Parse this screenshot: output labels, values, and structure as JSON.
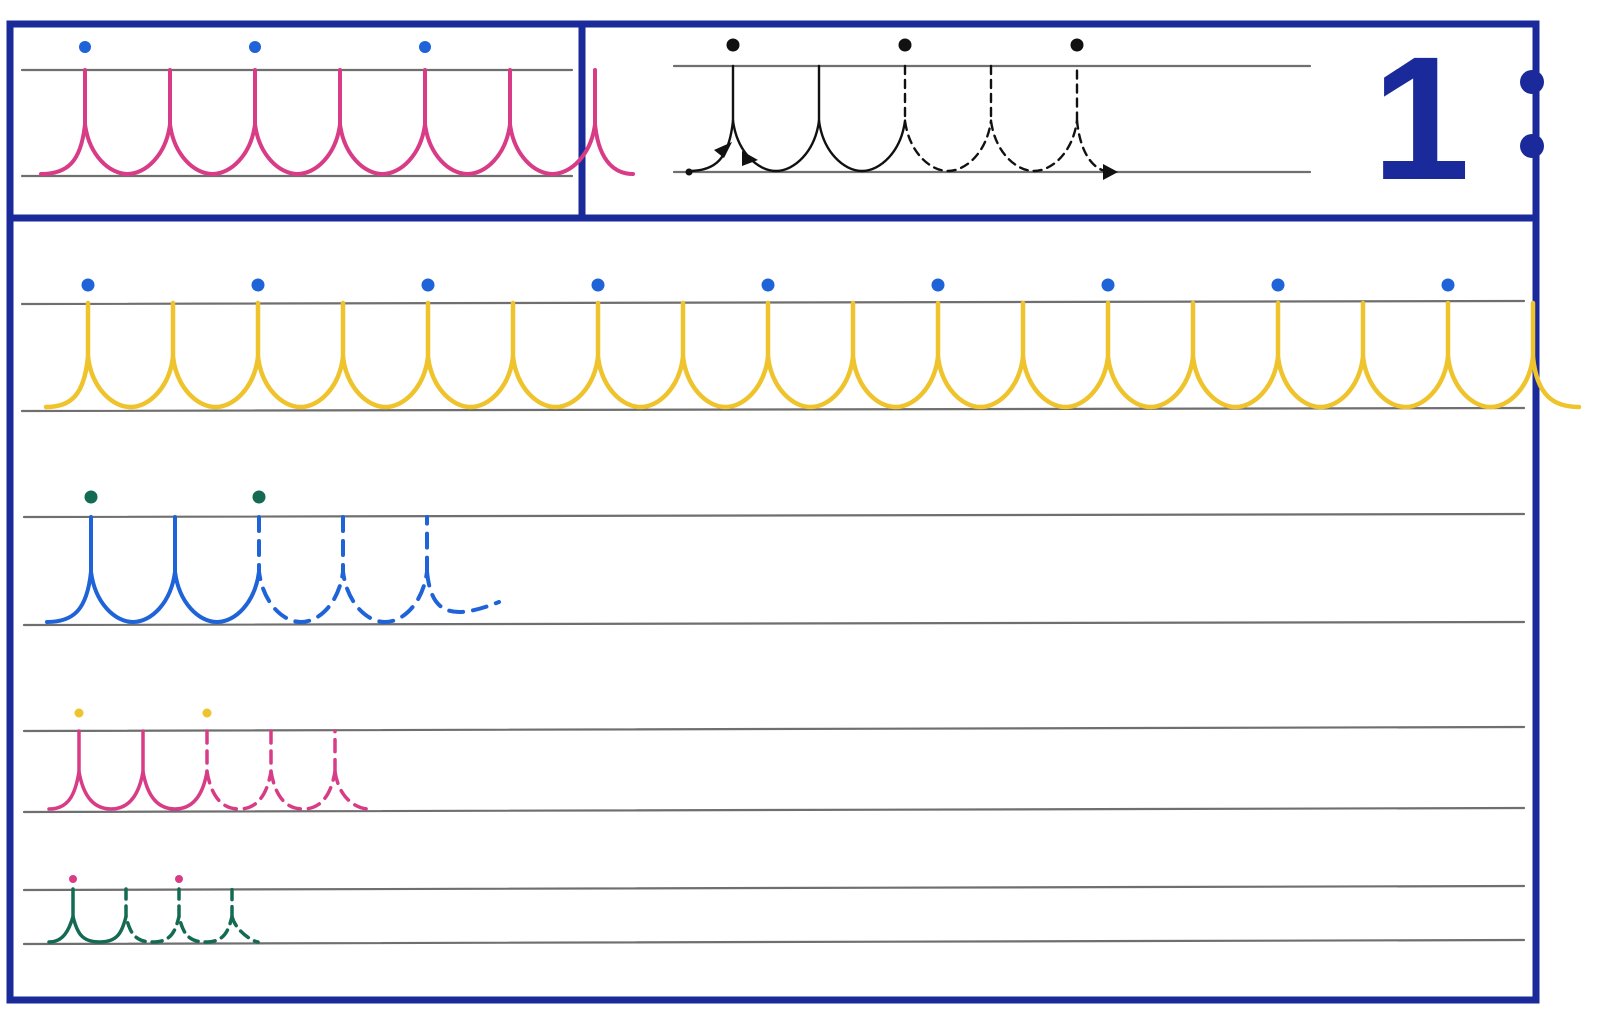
{
  "page_number": "1",
  "colors": {
    "frame": "#1a2a9a",
    "guide_line": "#6f6f6f",
    "magenta": "#d83c86",
    "yellow": "#efc32c",
    "blue_dot": "#1f63d8",
    "blue": "#1f63d8",
    "green_dot": "#146a52",
    "green": "#146a52",
    "black": "#111111"
  },
  "rows": [
    {
      "id": "top-left-model",
      "loops": 6,
      "dots": 3,
      "stroke": "magenta",
      "dot": "blue_dot"
    },
    {
      "id": "top-right-guide",
      "loops": 2,
      "dashed_loops": 2,
      "dots": 3,
      "stroke": "black",
      "dot": "black",
      "arrows": true
    },
    {
      "id": "row-yellow",
      "loops": 17,
      "dots": 9,
      "stroke": "yellow",
      "dot": "blue_dot"
    },
    {
      "id": "row-blue",
      "loops": 2,
      "dashed_loops": 2,
      "dots": 2,
      "stroke": "blue",
      "dot": "green_dot"
    },
    {
      "id": "row-magenta",
      "loops": 2,
      "dashed_loops": 2,
      "dots": 2,
      "stroke": "magenta",
      "dot": "yellow"
    },
    {
      "id": "row-green",
      "loops": 1,
      "dashed_loops": 2,
      "dots": 2,
      "stroke": "green",
      "dot": "magenta"
    }
  ]
}
